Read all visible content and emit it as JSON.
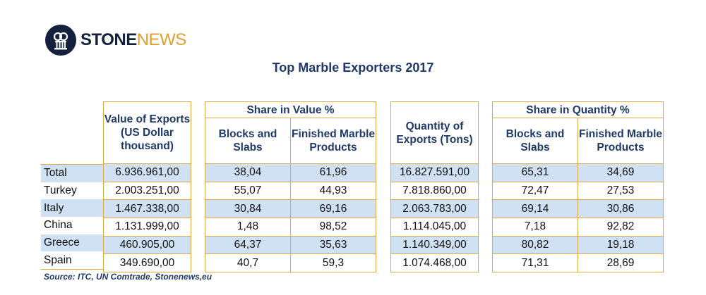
{
  "brand": {
    "stone": "STONE",
    "news": "NEWS"
  },
  "title": "Top Marble Exporters 2017",
  "headers": {
    "value": "Value of Exports (US Dollar thousand)",
    "share_value": "Share in Value %",
    "quantity": "Quantity of Exports (Tons)",
    "share_quantity": "Share in Quantity %",
    "blocks": "Blocks and Slabs",
    "finished": "Finished Marble Products"
  },
  "rows": [
    {
      "name": "Total",
      "value": "6.936.961,00",
      "sv_blocks": "38,04",
      "sv_finished": "61,96",
      "qty": "16.827.591,00",
      "sq_blocks": "65,31",
      "sq_finished": "34,69"
    },
    {
      "name": "Turkey",
      "value": "2.003.251,00",
      "sv_blocks": "55,07",
      "sv_finished": "44,93",
      "qty": "7.818.860,00",
      "sq_blocks": "72,47",
      "sq_finished": "27,53"
    },
    {
      "name": "Italy",
      "value": "1.467.338,00",
      "sv_blocks": "30,84",
      "sv_finished": "69,16",
      "qty": "2.063.783,00",
      "sq_blocks": "69,14",
      "sq_finished": "30,86"
    },
    {
      "name": "China",
      "value": "1.131.999,00",
      "sv_blocks": "1,48",
      "sv_finished": "98,52",
      "qty": "1.114.045,00",
      "sq_blocks": "7,18",
      "sq_finished": "92,82"
    },
    {
      "name": "Greece",
      "value": "460.905,00",
      "sv_blocks": "64,37",
      "sv_finished": "35,63",
      "qty": "1.140.349,00",
      "sq_blocks": "80,82",
      "sq_finished": "19,18"
    },
    {
      "name": "Spain",
      "value": "349.690,00",
      "sv_blocks": "40,7",
      "sv_finished": "59,3",
      "qty": "1.074.468,00",
      "sq_blocks": "71,31",
      "sq_finished": "28,69"
    }
  ],
  "source": "Source: ITC, UN Comtrade, Stonenews,eu",
  "colors": {
    "accent_border": "#e2a940",
    "row_highlight": "#cfe1f2",
    "header_text": "#1f3a68",
    "logo_dark": "#14213d",
    "logo_accent": "#e0a030"
  }
}
